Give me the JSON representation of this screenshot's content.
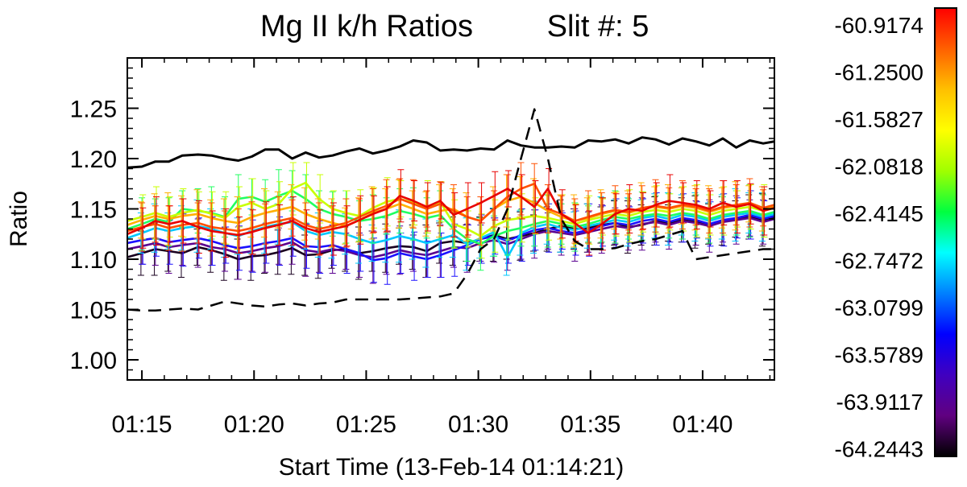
{
  "chart_data": {
    "type": "line",
    "title": "Mg II k/h Ratios",
    "subtitle": "Slit #: 5",
    "xlabel": "Start Time (13-Feb-14 01:14:21)",
    "ylabel": "Ratio",
    "xlim": [
      14.35,
      43.2
    ],
    "ylim": [
      0.98,
      1.3
    ],
    "x_tick_values": [
      15,
      20,
      25,
      30,
      35,
      40
    ],
    "x_tick_labels": [
      "01:15",
      "01:20",
      "01:25",
      "01:30",
      "01:35",
      "01:40"
    ],
    "y_tick_values": [
      1.0,
      1.05,
      1.1,
      1.15,
      1.2,
      1.25
    ],
    "y_tick_labels": [
      "1.00",
      "1.05",
      "1.10",
      "1.15",
      "1.20",
      "1.25"
    ],
    "x": [
      14.35,
      15.0,
      15.6,
      16.2,
      16.8,
      17.5,
      18.1,
      18.7,
      19.3,
      19.9,
      20.5,
      21.1,
      21.7,
      22.3,
      22.9,
      23.5,
      24.1,
      24.7,
      25.3,
      25.9,
      26.5,
      27.1,
      27.7,
      28.3,
      28.9,
      29.5,
      30.1,
      30.7,
      31.3,
      31.9,
      32.5,
      33.1,
      33.7,
      34.3,
      34.9,
      35.5,
      36.1,
      36.7,
      37.3,
      37.9,
      38.5,
      39.1,
      39.7,
      40.3,
      40.9,
      41.5,
      42.1,
      42.7,
      43.2
    ],
    "upper_reference": {
      "name": "upper (solid)",
      "values": [
        1.191,
        1.192,
        1.197,
        1.197,
        1.203,
        1.204,
        1.203,
        1.2,
        1.198,
        1.202,
        1.209,
        1.209,
        1.2,
        1.206,
        1.201,
        1.203,
        1.207,
        1.21,
        1.205,
        1.208,
        1.212,
        1.218,
        1.216,
        1.208,
        1.209,
        1.208,
        1.21,
        1.209,
        1.218,
        1.213,
        1.211,
        1.211,
        1.212,
        1.211,
        1.218,
        1.217,
        1.219,
        1.215,
        1.221,
        1.219,
        1.214,
        1.22,
        1.217,
        1.213,
        1.22,
        1.211,
        1.218,
        1.215,
        1.217
      ]
    },
    "lower_reference": {
      "name": "lower (dashed)",
      "values": [
        1.05,
        1.049,
        1.049,
        1.05,
        1.051,
        1.05,
        1.054,
        1.058,
        1.056,
        1.054,
        1.053,
        1.055,
        1.056,
        1.054,
        1.056,
        1.057,
        1.06,
        1.06,
        1.06,
        1.06,
        1.06,
        1.061,
        1.062,
        1.063,
        1.066,
        1.085,
        1.11,
        1.12,
        1.15,
        1.2,
        1.249,
        1.2,
        1.14,
        1.118,
        1.11,
        1.11,
        1.111,
        1.115,
        1.118,
        1.12,
        1.124,
        1.128,
        1.1,
        1.102,
        1.104,
        1.106,
        1.108,
        1.11,
        1.11
      ]
    },
    "colorbar": {
      "labels": [
        "-60.9174",
        "-61.2500",
        "-61.5827",
        "-62.0818",
        "-62.4145",
        "-62.7472",
        "-63.0799",
        "-63.5789",
        "-63.9117",
        "-64.2443"
      ],
      "colors": [
        "#ff0000",
        "#ff6000",
        "#ffc000",
        "#ffff00",
        "#a0ff00",
        "#00ff40",
        "#00ffff",
        "#0080ff",
        "#0000ff",
        "#4000c0",
        "#600080",
        "#000000"
      ]
    },
    "series": [
      {
        "name": "-64.2443",
        "color": "#1a0020",
        "values": [
          1.102,
          1.106,
          1.11,
          1.108,
          1.106,
          1.112,
          1.109,
          1.105,
          1.1,
          1.103,
          1.104,
          1.107,
          1.111,
          1.104,
          1.105,
          1.109,
          1.11,
          1.106,
          1.108,
          1.111,
          1.113,
          1.112,
          1.108,
          1.116,
          1.118,
          1.116,
          1.12,
          1.124,
          1.12,
          1.123,
          1.126,
          1.13,
          1.133,
          1.13,
          1.131,
          1.134,
          1.136,
          1.132,
          1.134,
          1.138,
          1.136,
          1.139,
          1.137,
          1.135,
          1.138,
          1.14,
          1.142,
          1.139,
          1.141
        ]
      },
      {
        "name": "-63.9117",
        "color": "#5a0090",
        "values": [
          1.11,
          1.113,
          1.116,
          1.112,
          1.114,
          1.116,
          1.112,
          1.11,
          1.106,
          1.108,
          1.111,
          1.113,
          1.117,
          1.109,
          1.107,
          1.11,
          1.108,
          1.104,
          1.102,
          1.105,
          1.109,
          1.106,
          1.104,
          1.108,
          1.112,
          1.111,
          1.116,
          1.119,
          1.115,
          1.12,
          1.125,
          1.128,
          1.126,
          1.124,
          1.127,
          1.13,
          1.133,
          1.131,
          1.135,
          1.137,
          1.134,
          1.138,
          1.136,
          1.133,
          1.137,
          1.139,
          1.141,
          1.137,
          1.14
        ]
      },
      {
        "name": "-63.5789",
        "color": "#1c10ff",
        "values": [
          1.116,
          1.119,
          1.121,
          1.117,
          1.119,
          1.121,
          1.118,
          1.114,
          1.111,
          1.113,
          1.116,
          1.118,
          1.121,
          1.113,
          1.112,
          1.114,
          1.11,
          1.106,
          1.099,
          1.101,
          1.106,
          1.103,
          1.1,
          1.104,
          1.109,
          1.114,
          1.12,
          1.123,
          1.118,
          1.124,
          1.129,
          1.131,
          1.128,
          1.126,
          1.129,
          1.133,
          1.136,
          1.134,
          1.138,
          1.14,
          1.137,
          1.141,
          1.139,
          1.135,
          1.139,
          1.141,
          1.144,
          1.14,
          1.143
        ]
      },
      {
        "name": "-63.0799",
        "color": "#00c8ff",
        "values": [
          1.121,
          1.126,
          1.131,
          1.128,
          1.131,
          1.133,
          1.13,
          1.126,
          1.123,
          1.128,
          1.132,
          1.135,
          1.137,
          1.128,
          1.124,
          1.127,
          1.125,
          1.12,
          1.116,
          1.119,
          1.123,
          1.12,
          1.116,
          1.12,
          1.124,
          1.115,
          1.121,
          1.127,
          1.102,
          1.126,
          1.132,
          1.135,
          1.131,
          1.129,
          1.133,
          1.136,
          1.139,
          1.137,
          1.141,
          1.143,
          1.14,
          1.144,
          1.142,
          1.138,
          1.142,
          1.144,
          1.146,
          1.142,
          1.145
        ]
      },
      {
        "name": "-62.4145",
        "color": "#20ff60",
        "values": [
          1.13,
          1.135,
          1.14,
          1.137,
          1.15,
          1.148,
          1.146,
          1.142,
          1.16,
          1.162,
          1.157,
          1.163,
          1.168,
          1.16,
          1.15,
          1.145,
          1.142,
          1.138,
          1.14,
          1.143,
          1.148,
          1.145,
          1.141,
          1.144,
          1.13,
          1.12,
          1.115,
          1.123,
          1.128,
          1.131,
          1.135,
          1.138,
          1.135,
          1.132,
          1.135,
          1.139,
          1.142,
          1.14,
          1.143,
          1.145,
          1.143,
          1.146,
          1.144,
          1.14,
          1.144,
          1.146,
          1.148,
          1.144,
          1.147
        ]
      },
      {
        "name": "-62.0818",
        "color": "#c8ff00",
        "values": [
          1.138,
          1.142,
          1.146,
          1.142,
          1.146,
          1.149,
          1.145,
          1.141,
          1.152,
          1.156,
          1.15,
          1.155,
          1.17,
          1.176,
          1.16,
          1.15,
          1.146,
          1.143,
          1.151,
          1.157,
          1.16,
          1.156,
          1.152,
          1.157,
          1.135,
          1.13,
          1.123,
          1.133,
          1.139,
          1.141,
          1.143,
          1.141,
          1.138,
          1.135,
          1.139,
          1.142,
          1.145,
          1.143,
          1.147,
          1.149,
          1.147,
          1.15,
          1.148,
          1.144,
          1.148,
          1.15,
          1.152,
          1.148,
          1.151
        ]
      },
      {
        "name": "-61.5827",
        "color": "#ffb000",
        "values": [
          1.134,
          1.139,
          1.143,
          1.14,
          1.143,
          1.145,
          1.141,
          1.138,
          1.136,
          1.142,
          1.146,
          1.149,
          1.152,
          1.145,
          1.14,
          1.136,
          1.133,
          1.139,
          1.146,
          1.15,
          1.155,
          1.15,
          1.145,
          1.148,
          1.15,
          1.142,
          1.138,
          1.15,
          1.158,
          1.162,
          1.156,
          1.148,
          1.142,
          1.138,
          1.141,
          1.145,
          1.148,
          1.146,
          1.15,
          1.152,
          1.15,
          1.153,
          1.151,
          1.147,
          1.151,
          1.153,
          1.155,
          1.15,
          1.153
        ]
      },
      {
        "name": "-61.2500",
        "color": "#ff5000",
        "values": [
          1.128,
          1.132,
          1.135,
          1.131,
          1.134,
          1.136,
          1.132,
          1.13,
          1.128,
          1.131,
          1.135,
          1.138,
          1.141,
          1.134,
          1.13,
          1.133,
          1.136,
          1.142,
          1.148,
          1.153,
          1.16,
          1.155,
          1.15,
          1.155,
          1.148,
          1.142,
          1.138,
          1.15,
          1.162,
          1.17,
          1.175,
          1.15,
          1.145,
          1.138,
          1.142,
          1.146,
          1.149,
          1.147,
          1.151,
          1.153,
          1.151,
          1.154,
          1.152,
          1.148,
          1.152,
          1.154,
          1.156,
          1.151,
          1.154
        ]
      },
      {
        "name": "-60.9174",
        "color": "#e80000",
        "values": [
          1.125,
          1.131,
          1.138,
          1.135,
          1.138,
          1.132,
          1.128,
          1.126,
          1.124,
          1.127,
          1.131,
          1.134,
          1.138,
          1.131,
          1.127,
          1.13,
          1.133,
          1.139,
          1.145,
          1.15,
          1.163,
          1.158,
          1.152,
          1.158,
          1.144,
          1.15,
          1.156,
          1.163,
          1.17,
          1.162,
          1.152,
          1.17,
          1.145,
          1.136,
          1.126,
          1.135,
          1.145,
          1.15,
          1.148,
          1.154,
          1.158,
          1.156,
          1.154,
          1.15,
          1.156,
          1.152,
          1.155,
          1.148,
          1.151
        ]
      }
    ]
  }
}
